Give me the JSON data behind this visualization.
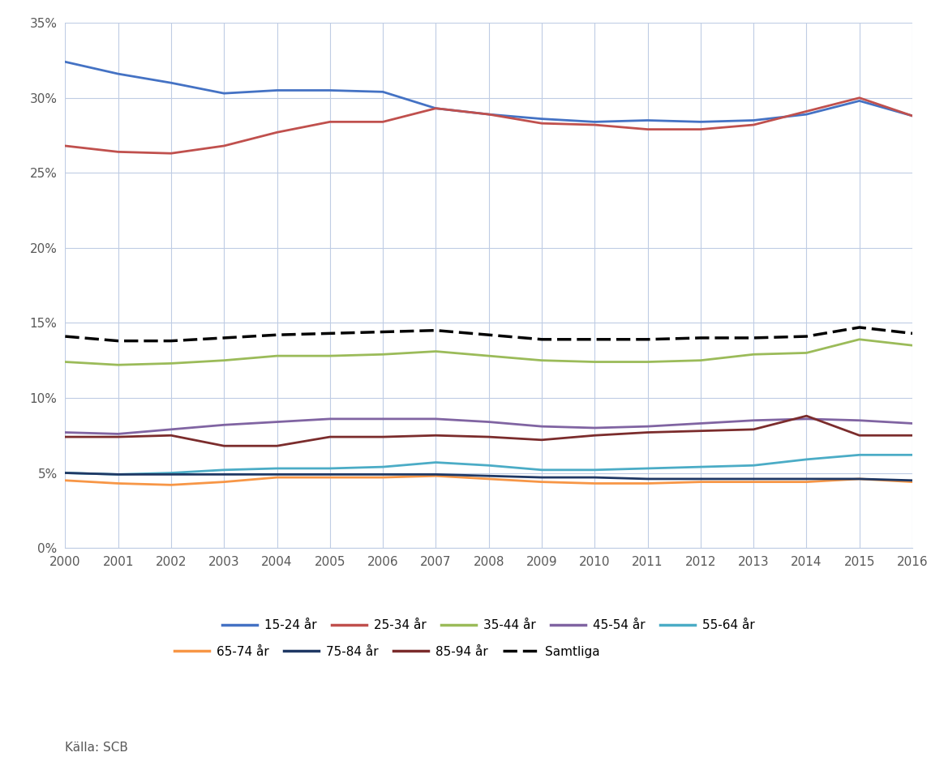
{
  "years": [
    2000,
    2001,
    2002,
    2003,
    2004,
    2005,
    2006,
    2007,
    2008,
    2009,
    2010,
    2011,
    2012,
    2013,
    2014,
    2015,
    2016
  ],
  "series": {
    "15-24 år": [
      0.324,
      0.316,
      0.31,
      0.303,
      0.305,
      0.305,
      0.304,
      0.293,
      0.289,
      0.286,
      0.284,
      0.285,
      0.284,
      0.285,
      0.289,
      0.298,
      0.288
    ],
    "25-34 år": [
      0.268,
      0.264,
      0.263,
      0.268,
      0.277,
      0.284,
      0.284,
      0.293,
      0.289,
      0.283,
      0.282,
      0.279,
      0.279,
      0.282,
      0.291,
      0.3,
      0.288
    ],
    "35-44 år": [
      0.124,
      0.122,
      0.123,
      0.125,
      0.128,
      0.128,
      0.129,
      0.131,
      0.128,
      0.125,
      0.124,
      0.124,
      0.125,
      0.129,
      0.13,
      0.139,
      0.135
    ],
    "45-54 år": [
      0.077,
      0.076,
      0.079,
      0.082,
      0.084,
      0.086,
      0.086,
      0.086,
      0.084,
      0.081,
      0.08,
      0.081,
      0.083,
      0.085,
      0.086,
      0.085,
      0.083
    ],
    "55-64 år": [
      0.05,
      0.049,
      0.05,
      0.052,
      0.053,
      0.053,
      0.054,
      0.057,
      0.055,
      0.052,
      0.052,
      0.053,
      0.054,
      0.055,
      0.059,
      0.062,
      0.062
    ],
    "65-74 år": [
      0.045,
      0.043,
      0.042,
      0.044,
      0.047,
      0.047,
      0.047,
      0.048,
      0.046,
      0.044,
      0.043,
      0.043,
      0.044,
      0.044,
      0.044,
      0.046,
      0.044
    ],
    "75-84 år": [
      0.05,
      0.049,
      0.049,
      0.049,
      0.049,
      0.049,
      0.049,
      0.049,
      0.048,
      0.047,
      0.047,
      0.046,
      0.046,
      0.046,
      0.046,
      0.046,
      0.045
    ],
    "85-94 år": [
      0.074,
      0.074,
      0.075,
      0.068,
      0.068,
      0.074,
      0.074,
      0.075,
      0.074,
      0.072,
      0.075,
      0.077,
      0.078,
      0.079,
      0.088,
      0.075,
      0.075
    ],
    "Samtliga": [
      0.141,
      0.138,
      0.138,
      0.14,
      0.142,
      0.143,
      0.144,
      0.145,
      0.142,
      0.139,
      0.139,
      0.139,
      0.14,
      0.14,
      0.141,
      0.147,
      0.143
    ]
  },
  "colors": {
    "15-24 år": "#4472C4",
    "25-34 år": "#C0504D",
    "35-44 år": "#9BBB59",
    "45-54 år": "#8064A2",
    "55-64 år": "#4BACC6",
    "65-74 år": "#F79646",
    "75-84 år": "#1F3864",
    "85-94 år": "#7B2C2C",
    "Samtliga": "#000000"
  },
  "legend_row1": [
    "15-24 år",
    "25-34 år",
    "35-44 år",
    "45-54 år",
    "55-64 år"
  ],
  "legend_row2": [
    "65-74 år",
    "75-84 år",
    "85-94 år",
    "Samtliga"
  ],
  "background_color": "#ffffff",
  "grid_color": "#BFCCE4",
  "source_text": "Källa: SCB",
  "ylim": [
    0,
    0.35
  ],
  "yticks": [
    0,
    0.05,
    0.1,
    0.15,
    0.2,
    0.25,
    0.3,
    0.35
  ]
}
